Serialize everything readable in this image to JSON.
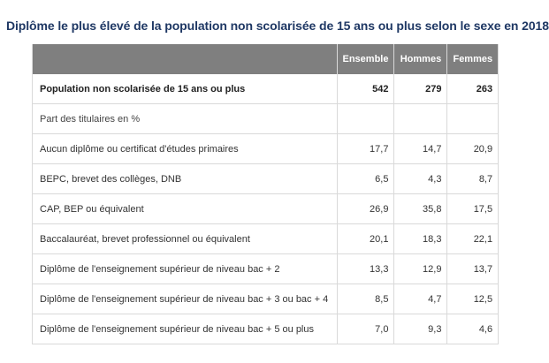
{
  "title": "Diplôme le plus élevé de la population non scolarisée de 15 ans ou plus selon le sexe en 2018",
  "columns": [
    "",
    "Ensemble",
    "Hommes",
    "Femmes"
  ],
  "rows": [
    {
      "label": "Population non scolarisée de 15 ans ou plus",
      "ensemble": "542",
      "hommes": "279",
      "femmes": "263"
    },
    {
      "label": "Part des titulaires en %",
      "ensemble": "",
      "hommes": "",
      "femmes": ""
    },
    {
      "label": "Aucun diplôme ou certificat d'études primaires",
      "ensemble": "17,7",
      "hommes": "14,7",
      "femmes": "20,9"
    },
    {
      "label": "BEPC, brevet des collèges, DNB",
      "ensemble": "6,5",
      "hommes": "4,3",
      "femmes": "8,7"
    },
    {
      "label": "CAP, BEP ou équivalent",
      "ensemble": "26,9",
      "hommes": "35,8",
      "femmes": "17,5"
    },
    {
      "label": "Baccalauréat, brevet professionnel ou équivalent",
      "ensemble": "20,1",
      "hommes": "18,3",
      "femmes": "22,1"
    },
    {
      "label": "Diplôme de l'enseignement supérieur de niveau bac + 2",
      "ensemble": "13,3",
      "hommes": "12,9",
      "femmes": "13,7"
    },
    {
      "label": "Diplôme de l'enseignement supérieur de niveau bac + 3 ou bac + 4",
      "ensemble": "8,5",
      "hommes": "4,7",
      "femmes": "12,5"
    },
    {
      "label": "Diplôme de l'enseignement supérieur de niveau bac + 5 ou plus",
      "ensemble": "7,0",
      "hommes": "9,3",
      "femmes": "4,6"
    }
  ],
  "colors": {
    "title": "#1f3864",
    "header_bg": "#7f7f7f",
    "border": "#d9d9d9"
  }
}
